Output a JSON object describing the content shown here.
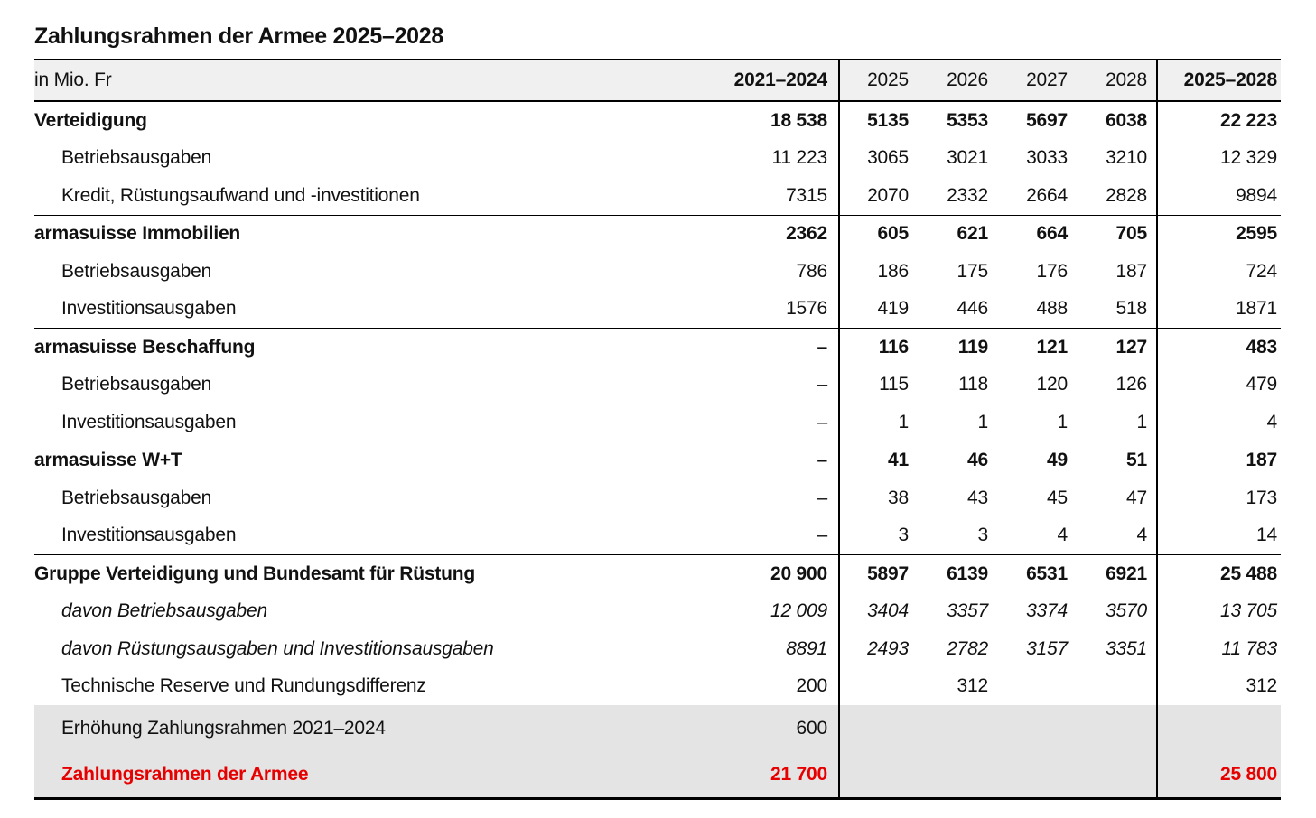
{
  "title": "Zahlungsrahmen der Armee 2025–2028",
  "colors": {
    "accent_red": "#e60000",
    "header_bg": "#f0f0f0",
    "footer_bg": "#e4e4e4",
    "line": "#000000"
  },
  "table": {
    "unit_label": "in Mio. Fr",
    "columns": [
      "2021–2024",
      "2025",
      "2026",
      "2027",
      "2028",
      "2025–2028"
    ],
    "rows": [
      {
        "label": "Verteidigung",
        "values": [
          "18 538",
          "5135",
          "5353",
          "5697",
          "6038",
          "22 223"
        ]
      },
      {
        "label": "Betriebsausgaben",
        "values": [
          "11 223",
          "3065",
          "3021",
          "3033",
          "3210",
          "12 329"
        ]
      },
      {
        "label": "Kredit, Rüstungsaufwand und -investitionen",
        "values": [
          "7315",
          "2070",
          "2332",
          "2664",
          "2828",
          "9894"
        ]
      },
      {
        "label": "armasuisse Immobilien",
        "values": [
          "2362",
          "605",
          "621",
          "664",
          "705",
          "2595"
        ]
      },
      {
        "label": "Betriebsausgaben",
        "values": [
          "786",
          "186",
          "175",
          "176",
          "187",
          "724"
        ]
      },
      {
        "label": "Investitionsausgaben",
        "values": [
          "1576",
          "419",
          "446",
          "488",
          "518",
          "1871"
        ]
      },
      {
        "label": "armasuisse Beschaffung",
        "values": [
          "–",
          "116",
          "119",
          "121",
          "127",
          "483"
        ]
      },
      {
        "label": "Betriebsausgaben",
        "values": [
          "–",
          "115",
          "118",
          "120",
          "126",
          "479"
        ]
      },
      {
        "label": "Investitionsausgaben",
        "values": [
          "–",
          "1",
          "1",
          "1",
          "1",
          "4"
        ]
      },
      {
        "label": "armasuisse W+T",
        "values": [
          "–",
          "41",
          "46",
          "49",
          "51",
          "187"
        ]
      },
      {
        "label": "Betriebsausgaben",
        "values": [
          "–",
          "38",
          "43",
          "45",
          "47",
          "173"
        ]
      },
      {
        "label": "Investitionsausgaben",
        "values": [
          "–",
          "3",
          "3",
          "4",
          "4",
          "14"
        ]
      },
      {
        "label": "Gruppe Verteidigung und Bundesamt für Rüstung",
        "values": [
          "20 900",
          "5897",
          "6139",
          "6531",
          "6921",
          "25 488"
        ]
      },
      {
        "label": "davon Betriebsausgaben",
        "values": [
          "12 009",
          "3404",
          "3357",
          "3374",
          "3570",
          "13 705"
        ]
      },
      {
        "label": "davon Rüstungsausgaben und Investitionsausgaben",
        "values": [
          "8891",
          "2493",
          "2782",
          "3157",
          "3351",
          "11 783"
        ]
      },
      {
        "label": "Technische Reserve und Rundungsdifferenz",
        "values": [
          "200",
          "",
          "312",
          "",
          "",
          "312"
        ]
      }
    ],
    "footer_rows": [
      {
        "label": "Erhöhung Zahlungsrahmen 2021–2024",
        "values": [
          "600",
          "",
          "",
          "",
          "",
          ""
        ]
      },
      {
        "label": "Zahlungsrahmen der Armee",
        "values": [
          "21 700",
          "",
          "",
          "",
          "",
          "25 800"
        ]
      }
    ]
  }
}
